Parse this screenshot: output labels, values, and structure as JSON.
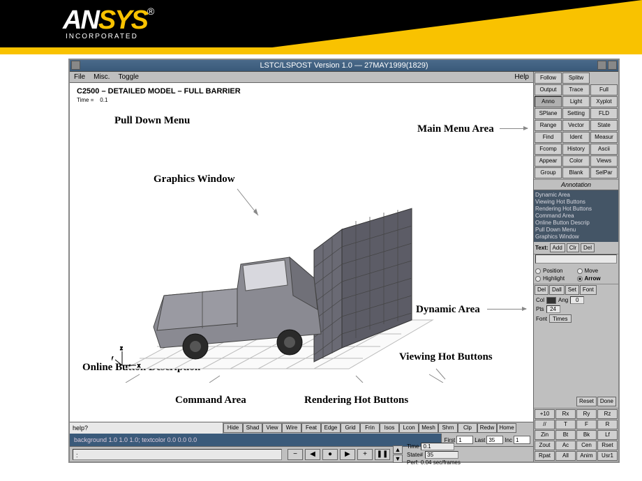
{
  "banner": {
    "brand_prefix": "AN",
    "brand_suffix": "SYS",
    "reg": "®",
    "sub": "INCORPORATED"
  },
  "window": {
    "title": "LSTC/LSPOST Version 1.0 — 27MAY1999(1829)"
  },
  "menubar": {
    "items": [
      "File",
      "Misc.",
      "Toggle"
    ],
    "help": "Help"
  },
  "model": {
    "title": "C2500 – DETAILED MODEL – FULL BARRIER",
    "time_label": "Time =",
    "time_value": "0.1"
  },
  "callouts": {
    "pulldown": "Pull Down Menu",
    "graphics": "Graphics Window",
    "mainmenu": "Main Menu Area",
    "dynamic": "Dynamic Area",
    "viewhot": "Viewing Hot Buttons",
    "renderhot": "Rendering Hot Buttons",
    "cmdarea": "Command Area",
    "online": "Online Button Description"
  },
  "hotbar": {
    "help": "help?",
    "buttons": [
      "Hide",
      "Shad",
      "View",
      "Wire",
      "Feat",
      "Edge",
      "Grid",
      "Frin",
      "Isos",
      "Lcon",
      "Mesh",
      "Shrn",
      "Clp",
      "Redw",
      "Home"
    ]
  },
  "command": {
    "text": "background 1.0 1.0 1.0; textcolor 0.0 0.0 0.0"
  },
  "playback": {
    "first_label": "First",
    "first": "1",
    "last_label": "Last",
    "last": "35",
    "inc_label": "Inc",
    "inc": "1",
    "time_label": "Time",
    "time": "0.1",
    "state_label": "State#",
    "state": "35",
    "perf_label": "Perf:",
    "perf": "0.04 sec/frames",
    "prompt": ":"
  },
  "mainmenu": {
    "rows": [
      [
        "Follow",
        "Splitw",
        ""
      ],
      [
        "Output",
        "Trace",
        "Full"
      ],
      [
        "Anno",
        "Light",
        "Xyplot"
      ],
      [
        "SPlane",
        "Setting",
        "FLD"
      ],
      [
        "Range",
        "Vector",
        "State"
      ],
      [
        "Find",
        "Ident",
        "Measur"
      ],
      [
        "Fcomp",
        "History",
        "Ascii"
      ],
      [
        "Appear",
        "Color",
        "Views"
      ],
      [
        "Group",
        "Blank",
        "SelPar"
      ]
    ],
    "active": "Anno"
  },
  "annotation": {
    "section": "Annotation",
    "list": [
      "Dynamic Area",
      "Viewing Hot Buttons",
      "Rendering Hot Buttons",
      "Command Area",
      "Online Button Descrip",
      "Pull Down Menu",
      "Graphics Window"
    ],
    "text_label": "Text:",
    "text_btns": [
      "Add",
      "Clr",
      "Del"
    ],
    "radios": {
      "position": "Position",
      "move": "Move",
      "highlight": "Highlight",
      "arrow": "Arrow"
    },
    "arrow_on": true,
    "editbtns": [
      "Del",
      "Dall",
      "Set",
      "Font"
    ],
    "col_label": "Col",
    "ang_label": "Ang",
    "ang_val": "0",
    "pts_label": "Pts",
    "pts_val": "24",
    "font_label": "Font",
    "font_val": "Times",
    "bottom": [
      "Reset",
      "Done"
    ]
  },
  "viewhot": {
    "rows": [
      [
        "+10",
        "Rx",
        "Ry",
        "Rz"
      ],
      [
        "//",
        "T",
        "F",
        "R"
      ],
      [
        "Zin",
        "Bt",
        "Bk",
        "Lf"
      ],
      [
        "Zout",
        "Ac",
        "Cen",
        "Rset"
      ],
      [
        "Rpat",
        "All",
        "Anim",
        "Usr1"
      ]
    ]
  },
  "colors": {
    "banner_bg": "#000000",
    "accent": "#f9c200",
    "titlebar": "#3a5a7a",
    "panel": "#bfbfbf",
    "button": "#d0d0d0",
    "list_bg": "#445566"
  }
}
